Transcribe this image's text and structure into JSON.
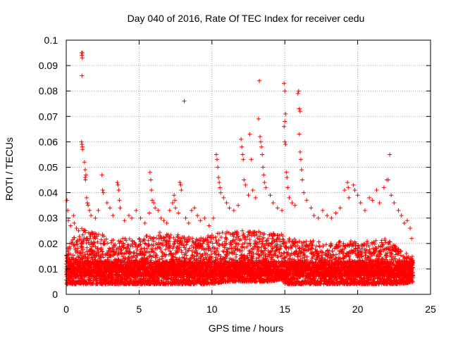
{
  "chart_data": {
    "type": "scatter",
    "title": "Day 040 of 2016, Rate Of TEC Index for receiver cedu",
    "xlabel": "GPS time / hours",
    "ylabel": "ROTI / TECUs",
    "xlim": [
      0,
      25
    ],
    "ylim": [
      0,
      0.1
    ],
    "x_ticks": [
      "0",
      "5",
      "10",
      "15",
      "20",
      "25"
    ],
    "y_ticks": [
      "0",
      "0.01",
      "0.02",
      "0.03",
      "0.04",
      "0.05",
      "0.06",
      "0.07",
      "0.08",
      "0.09",
      "0.1"
    ],
    "grid": true,
    "marker": "+",
    "color": "#ff0000",
    "series": [
      {
        "points": [
          [
            0.05,
            0.037
          ],
          [
            0.1,
            0.033
          ],
          [
            0.15,
            0.029
          ],
          [
            0.3,
            0.027
          ],
          [
            0.5,
            0.031
          ],
          [
            0.55,
            0.028
          ],
          [
            0.7,
            0.026
          ],
          [
            0.85,
            0.025
          ],
          [
            1.05,
            0.095
          ],
          [
            1.07,
            0.094
          ],
          [
            1.1,
            0.093
          ],
          [
            1.12,
            0.095
          ],
          [
            1.08,
            0.086
          ],
          [
            1.05,
            0.06
          ],
          [
            1.08,
            0.059
          ],
          [
            1.1,
            0.058
          ],
          [
            1.12,
            0.057
          ],
          [
            1.25,
            0.052
          ],
          [
            1.3,
            0.049
          ],
          [
            1.35,
            0.047
          ],
          [
            1.3,
            0.046
          ],
          [
            1.32,
            0.045
          ],
          [
            1.4,
            0.038
          ],
          [
            1.45,
            0.036
          ],
          [
            1.5,
            0.035
          ],
          [
            1.6,
            0.033
          ],
          [
            1.7,
            0.031
          ],
          [
            2.0,
            0.03
          ],
          [
            2.2,
            0.033
          ],
          [
            2.45,
            0.047
          ],
          [
            2.5,
            0.041
          ],
          [
            2.55,
            0.04
          ],
          [
            2.8,
            0.036
          ],
          [
            3.0,
            0.034
          ],
          [
            3.2,
            0.031
          ],
          [
            3.5,
            0.044
          ],
          [
            3.55,
            0.043
          ],
          [
            3.6,
            0.041
          ],
          [
            3.65,
            0.037
          ],
          [
            3.7,
            0.034
          ],
          [
            4.0,
            0.029
          ],
          [
            4.3,
            0.031
          ],
          [
            4.5,
            0.03
          ],
          [
            4.8,
            0.033
          ],
          [
            5.1,
            0.03
          ],
          [
            5.4,
            0.028
          ],
          [
            5.7,
            0.032
          ],
          [
            5.75,
            0.048
          ],
          [
            5.8,
            0.045
          ],
          [
            5.85,
            0.041
          ],
          [
            5.9,
            0.037
          ],
          [
            6.0,
            0.036
          ],
          [
            6.1,
            0.034
          ],
          [
            6.3,
            0.033
          ],
          [
            6.5,
            0.03
          ],
          [
            6.7,
            0.029
          ],
          [
            6.9,
            0.028
          ],
          [
            7.1,
            0.033
          ],
          [
            7.3,
            0.036
          ],
          [
            7.4,
            0.039
          ],
          [
            7.45,
            0.037
          ],
          [
            7.5,
            0.034
          ],
          [
            7.7,
            0.032
          ],
          [
            7.8,
            0.044
          ],
          [
            7.85,
            0.043
          ],
          [
            7.9,
            0.041
          ],
          [
            8.1,
            0.076
          ],
          [
            8.2,
            0.03
          ],
          [
            8.4,
            0.028
          ],
          [
            8.6,
            0.033
          ],
          [
            8.8,
            0.034
          ],
          [
            9.0,
            0.031
          ],
          [
            9.2,
            0.029
          ],
          [
            9.5,
            0.03
          ],
          [
            9.8,
            0.027
          ],
          [
            10.1,
            0.03
          ],
          [
            10.3,
            0.055
          ],
          [
            10.35,
            0.053
          ],
          [
            10.4,
            0.05
          ],
          [
            10.45,
            0.046
          ],
          [
            10.5,
            0.044
          ],
          [
            10.55,
            0.042
          ],
          [
            10.6,
            0.04
          ],
          [
            10.8,
            0.038
          ],
          [
            11.0,
            0.036
          ],
          [
            11.2,
            0.034
          ],
          [
            11.5,
            0.033
          ],
          [
            11.8,
            0.035
          ],
          [
            12.0,
            0.061
          ],
          [
            12.05,
            0.058
          ],
          [
            12.1,
            0.055
          ],
          [
            12.15,
            0.053
          ],
          [
            12.2,
            0.045
          ],
          [
            12.3,
            0.043
          ],
          [
            12.5,
            0.039
          ],
          [
            12.6,
            0.063
          ],
          [
            12.7,
            0.053
          ],
          [
            12.8,
            0.041
          ],
          [
            13.0,
            0.038
          ],
          [
            13.2,
            0.069
          ],
          [
            13.25,
            0.084
          ],
          [
            13.3,
            0.062
          ],
          [
            13.35,
            0.06
          ],
          [
            13.4,
            0.058
          ],
          [
            13.45,
            0.055
          ],
          [
            13.5,
            0.05
          ],
          [
            13.55,
            0.047
          ],
          [
            13.6,
            0.044
          ],
          [
            13.7,
            0.042
          ],
          [
            14.0,
            0.039
          ],
          [
            14.2,
            0.036
          ],
          [
            14.5,
            0.034
          ],
          [
            14.8,
            0.033
          ],
          [
            14.95,
            0.083
          ],
          [
            15.0,
            0.08
          ],
          [
            15.05,
            0.071
          ],
          [
            15.0,
            0.068
          ],
          [
            14.95,
            0.066
          ],
          [
            15.0,
            0.06
          ],
          [
            15.05,
            0.059
          ],
          [
            15.1,
            0.048
          ],
          [
            15.15,
            0.046
          ],
          [
            15.2,
            0.042
          ],
          [
            15.3,
            0.038
          ],
          [
            15.5,
            0.036
          ],
          [
            15.7,
            0.035
          ],
          [
            15.9,
            0.079
          ],
          [
            15.95,
            0.08
          ],
          [
            16.0,
            0.073
          ],
          [
            16.05,
            0.072
          ],
          [
            16.0,
            0.063
          ],
          [
            16.05,
            0.056
          ],
          [
            16.1,
            0.053
          ],
          [
            16.15,
            0.049
          ],
          [
            16.2,
            0.045
          ],
          [
            16.3,
            0.04
          ],
          [
            16.5,
            0.037
          ],
          [
            16.8,
            0.034
          ],
          [
            17.0,
            0.031
          ],
          [
            17.3,
            0.03
          ],
          [
            17.6,
            0.033
          ],
          [
            17.9,
            0.031
          ],
          [
            18.2,
            0.03
          ],
          [
            18.5,
            0.032
          ],
          [
            18.8,
            0.034
          ],
          [
            19.1,
            0.041
          ],
          [
            19.3,
            0.044
          ],
          [
            19.35,
            0.042
          ],
          [
            19.4,
            0.038
          ],
          [
            19.7,
            0.043
          ],
          [
            19.8,
            0.041
          ],
          [
            20.0,
            0.039
          ],
          [
            20.2,
            0.036
          ],
          [
            20.5,
            0.033
          ],
          [
            20.8,
            0.038
          ],
          [
            21.0,
            0.037
          ],
          [
            21.3,
            0.041
          ],
          [
            21.5,
            0.036
          ],
          [
            21.8,
            0.042
          ],
          [
            22.0,
            0.045
          ],
          [
            22.1,
            0.045
          ],
          [
            22.2,
            0.055
          ],
          [
            22.3,
            0.039
          ],
          [
            22.5,
            0.036
          ],
          [
            22.8,
            0.033
          ],
          [
            23.0,
            0.031
          ],
          [
            23.2,
            0.028
          ],
          [
            23.4,
            0.029
          ],
          [
            23.6,
            0.026
          ],
          [
            23.7,
            0.022
          ]
        ]
      }
    ],
    "dense_band": {
      "description_values": "baseline scatter of remaining points between 0.003 and 0.025 TECU across 0–23.8 h",
      "x_range": [
        0,
        23.8
      ],
      "envelope": [
        [
          0,
          0.004,
          0.018
        ],
        [
          1,
          0.004,
          0.026
        ],
        [
          2,
          0.004,
          0.024
        ],
        [
          3,
          0.004,
          0.023
        ],
        [
          4,
          0.004,
          0.022
        ],
        [
          5,
          0.004,
          0.022
        ],
        [
          6,
          0.004,
          0.024
        ],
        [
          7,
          0.004,
          0.025
        ],
        [
          8,
          0.004,
          0.023
        ],
        [
          9,
          0.004,
          0.022
        ],
        [
          10,
          0.004,
          0.024
        ],
        [
          11,
          0.005,
          0.025
        ],
        [
          12,
          0.005,
          0.025
        ],
        [
          13,
          0.005,
          0.025
        ],
        [
          14,
          0.005,
          0.024
        ],
        [
          14.8,
          0.006,
          0.024
        ],
        [
          15,
          0.004,
          0.022
        ],
        [
          16,
          0.004,
          0.022
        ],
        [
          17,
          0.004,
          0.021
        ],
        [
          18,
          0.004,
          0.02
        ],
        [
          19,
          0.004,
          0.021
        ],
        [
          20,
          0.004,
          0.021
        ],
        [
          21,
          0.004,
          0.021
        ],
        [
          22,
          0.004,
          0.022
        ],
        [
          23,
          0.004,
          0.017
        ],
        [
          23.8,
          0.005,
          0.015
        ]
      ]
    }
  }
}
